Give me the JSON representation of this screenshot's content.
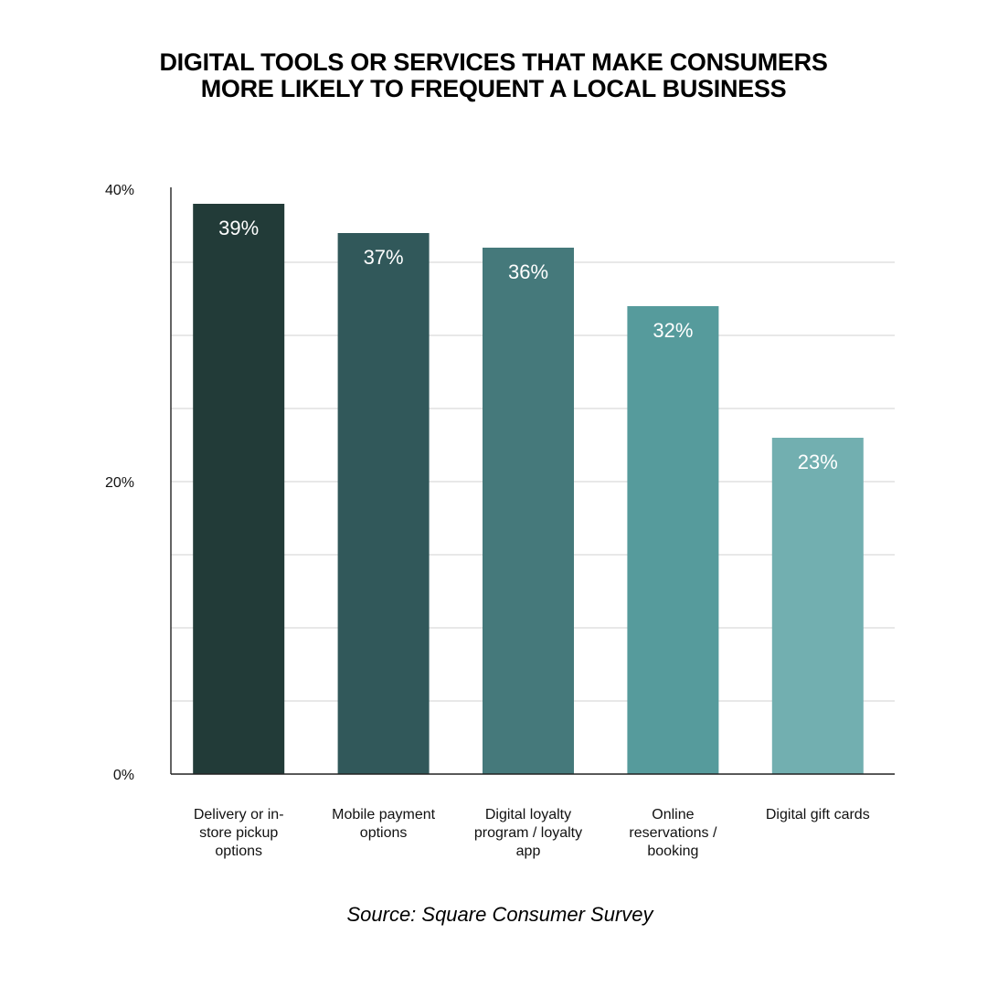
{
  "chart_data": {
    "type": "bar",
    "title": [
      "DIGITAL TOOLS OR SERVICES THAT MAKE CONSUMERS",
      "MORE LIKELY TO FREQUENT A LOCAL BUSINESS"
    ],
    "categories": [
      [
        "Delivery or in-",
        "store pickup",
        "options"
      ],
      [
        "Mobile payment",
        "options"
      ],
      [
        "Digital loyalty",
        "program / loyalty",
        "app"
      ],
      [
        "Online",
        "reservations /",
        "booking"
      ],
      [
        "Digital gift cards"
      ]
    ],
    "values": [
      39,
      37,
      36,
      32,
      23
    ],
    "value_labels": [
      "39%",
      "37%",
      "36%",
      "32%",
      "23%"
    ],
    "bar_colors": [
      "#223b38",
      "#31585a",
      "#45797b",
      "#569b9c",
      "#72afb0"
    ],
    "ylim": [
      0,
      40
    ],
    "y_ticks": [
      0,
      20,
      40
    ],
    "y_tick_labels": [
      "0%",
      "20%",
      "40%"
    ],
    "gridlines": [
      5,
      10,
      15,
      20,
      25,
      30,
      35
    ],
    "xlabel": "",
    "ylabel": "",
    "grid": true,
    "legend": "none"
  },
  "source": "Source: Square Consumer Survey"
}
